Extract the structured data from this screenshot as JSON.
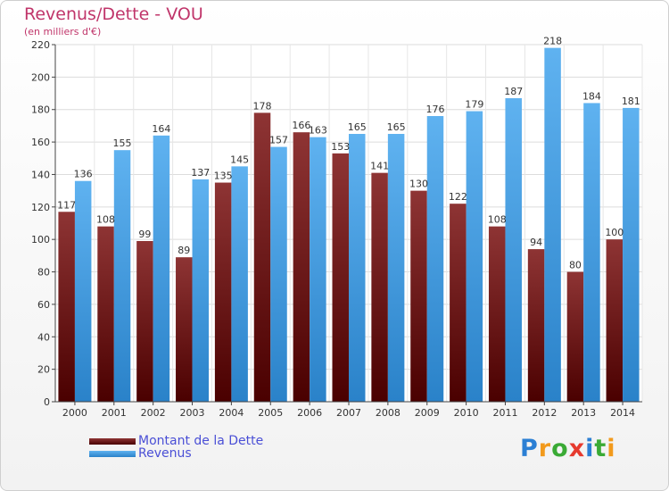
{
  "title": "Revenus/Dette - VOU",
  "subtitle": "(en milliers d'€)",
  "logo": {
    "letters": [
      {
        "ch": "P",
        "color": "#2b7fd4"
      },
      {
        "ch": "r",
        "color": "#f29a1c"
      },
      {
        "ch": "o",
        "color": "#3aaa35"
      },
      {
        "ch": "x",
        "color": "#e63a2e"
      },
      {
        "ch": "i",
        "color": "#2b7fd4"
      },
      {
        "ch": "t",
        "color": "#3aaa35"
      },
      {
        "ch": "i",
        "color": "#f29a1c"
      }
    ]
  },
  "chart_data": {
    "type": "bar",
    "categories": [
      "2000",
      "2001",
      "2002",
      "2003",
      "2004",
      "2005",
      "2006",
      "2007",
      "2008",
      "2009",
      "2010",
      "2011",
      "2012",
      "2013",
      "2014"
    ],
    "series": [
      {
        "name": "Montant de la Dette",
        "color": "#8b1e1e",
        "values": [
          117,
          108,
          99,
          89,
          135,
          178,
          166,
          153,
          141,
          130,
          122,
          108,
          94,
          80,
          100
        ]
      },
      {
        "name": "Revenus",
        "color": "#4aa3e6",
        "values": [
          136,
          155,
          164,
          137,
          145,
          157,
          163,
          165,
          165,
          176,
          179,
          187,
          218,
          184,
          181
        ]
      }
    ],
    "ylim": [
      0,
      220
    ],
    "yticks": [
      "0",
      "20",
      "40",
      "60",
      "80",
      "100",
      "120",
      "140",
      "160",
      "180",
      "200",
      "220"
    ],
    "grid": true,
    "legend": "bottom-left"
  }
}
